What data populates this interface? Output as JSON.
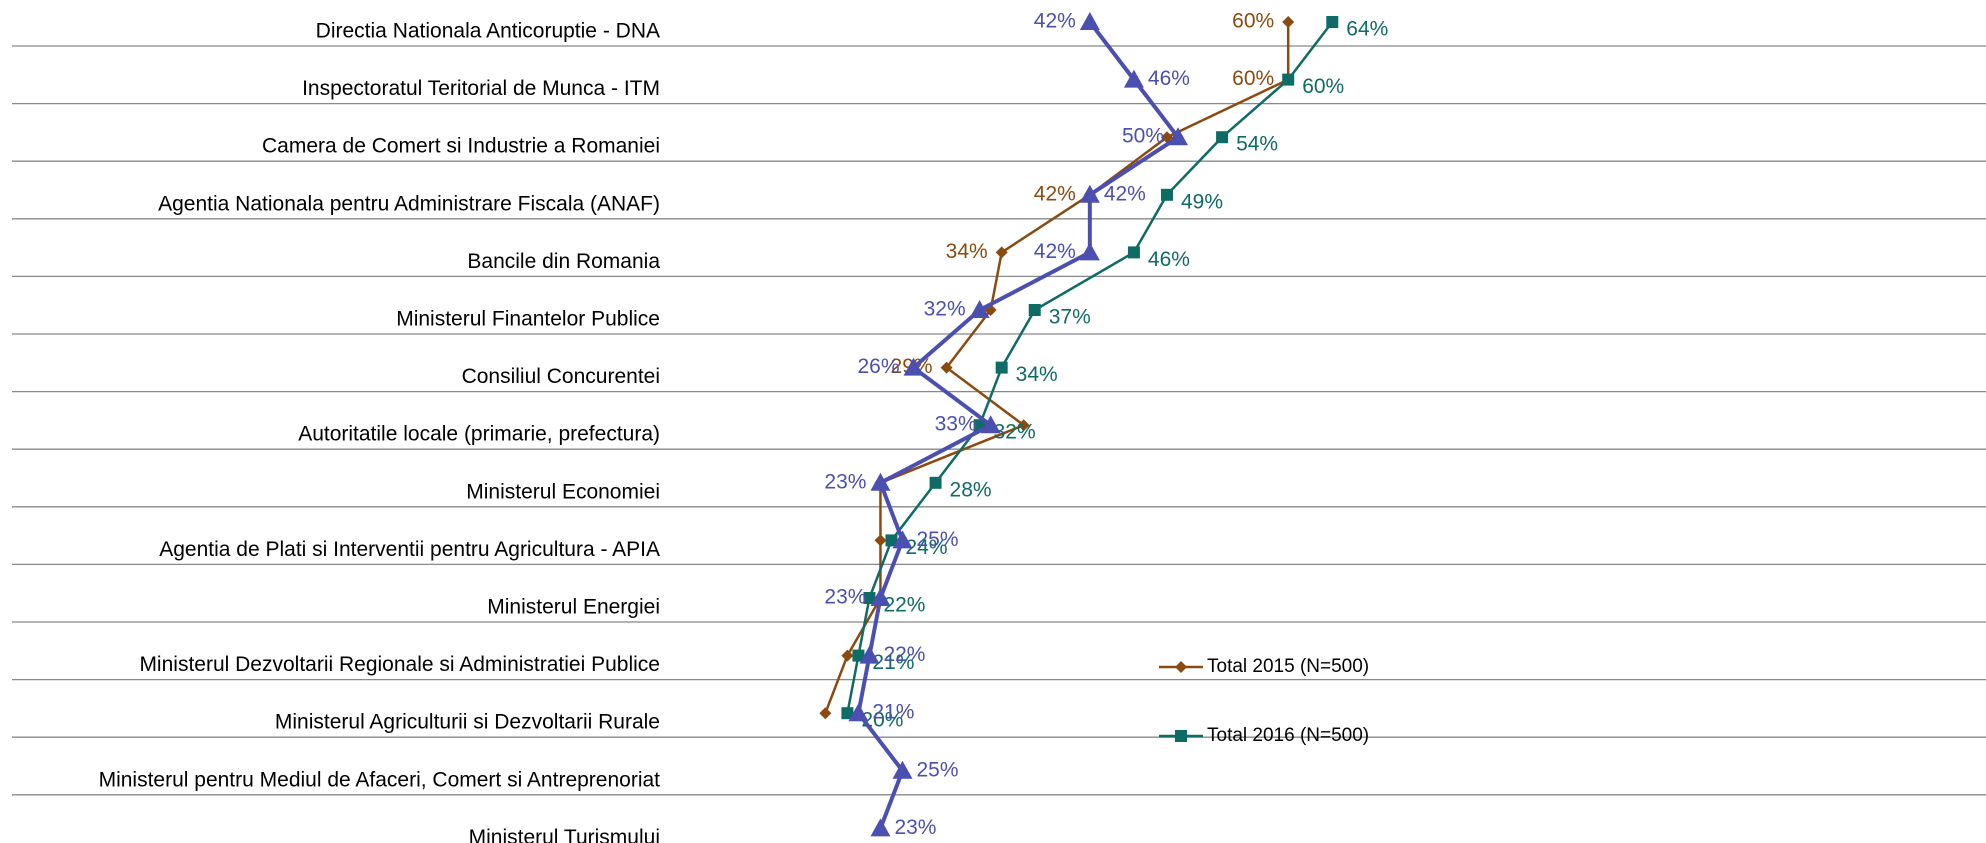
{
  "chart_data": {
    "type": "line",
    "categories": [
      "Directia Nationala Anticoruptie - DNA",
      "Inspectoratul Teritorial de Munca - ITM",
      "Camera de Comert si Industrie a Romaniei",
      "Agentia Nationala pentru Administrare Fiscala (ANAF)",
      "Bancile din Romania",
      "Ministerul Finantelor Publice",
      "Consiliul Concurentei",
      "Autoritatile locale (primarie, prefectura)",
      "Ministerul Economiei",
      "Agentia de Plati si Interventii pentru Agricultura - APIA",
      "Ministerul Energiei",
      "Ministerul Dezvoltarii Regionale si Administratiei Publice",
      "Ministerul Agriculturii si Dezvoltarii Rurale",
      "Ministerul pentru Mediul de Afaceri, Comert si Antreprenoriat",
      "Ministerul Turismului"
    ],
    "series": [
      {
        "name": "Total 2015 (N=500)",
        "color": "#8b4a0f",
        "values": [
          60,
          60,
          49,
          42,
          34,
          33,
          29,
          36,
          23,
          23,
          23,
          20,
          18,
          null,
          null
        ],
        "value_labels": [
          "60%",
          "60%",
          null,
          "42%",
          "34%",
          null,
          "29%",
          null,
          null,
          null,
          null,
          null,
          null,
          null,
          null
        ]
      },
      {
        "name": "Total 2016 (N=500)",
        "color": "#0e6b66",
        "values": [
          64,
          60,
          54,
          49,
          46,
          37,
          34,
          32,
          28,
          24,
          22,
          21,
          20,
          null,
          null
        ],
        "value_labels": [
          "64%",
          "60%",
          "54%",
          "49%",
          "46%",
          "37%",
          "34%",
          "32%",
          "28%",
          "24%",
          "22%",
          "21%",
          "20%",
          null,
          null
        ]
      },
      {
        "color": "#4b50b0",
        "values": [
          42,
          46,
          50,
          42,
          42,
          32,
          26,
          33,
          23,
          25,
          23,
          22,
          21,
          25,
          23
        ],
        "value_labels": [
          "42%",
          "46%",
          "50%",
          "42%",
          "42%",
          "32%",
          "26%",
          "33%",
          "23%",
          "25%",
          "23%",
          "22%",
          "21%",
          "25%",
          "23%"
        ]
      }
    ]
  }
}
